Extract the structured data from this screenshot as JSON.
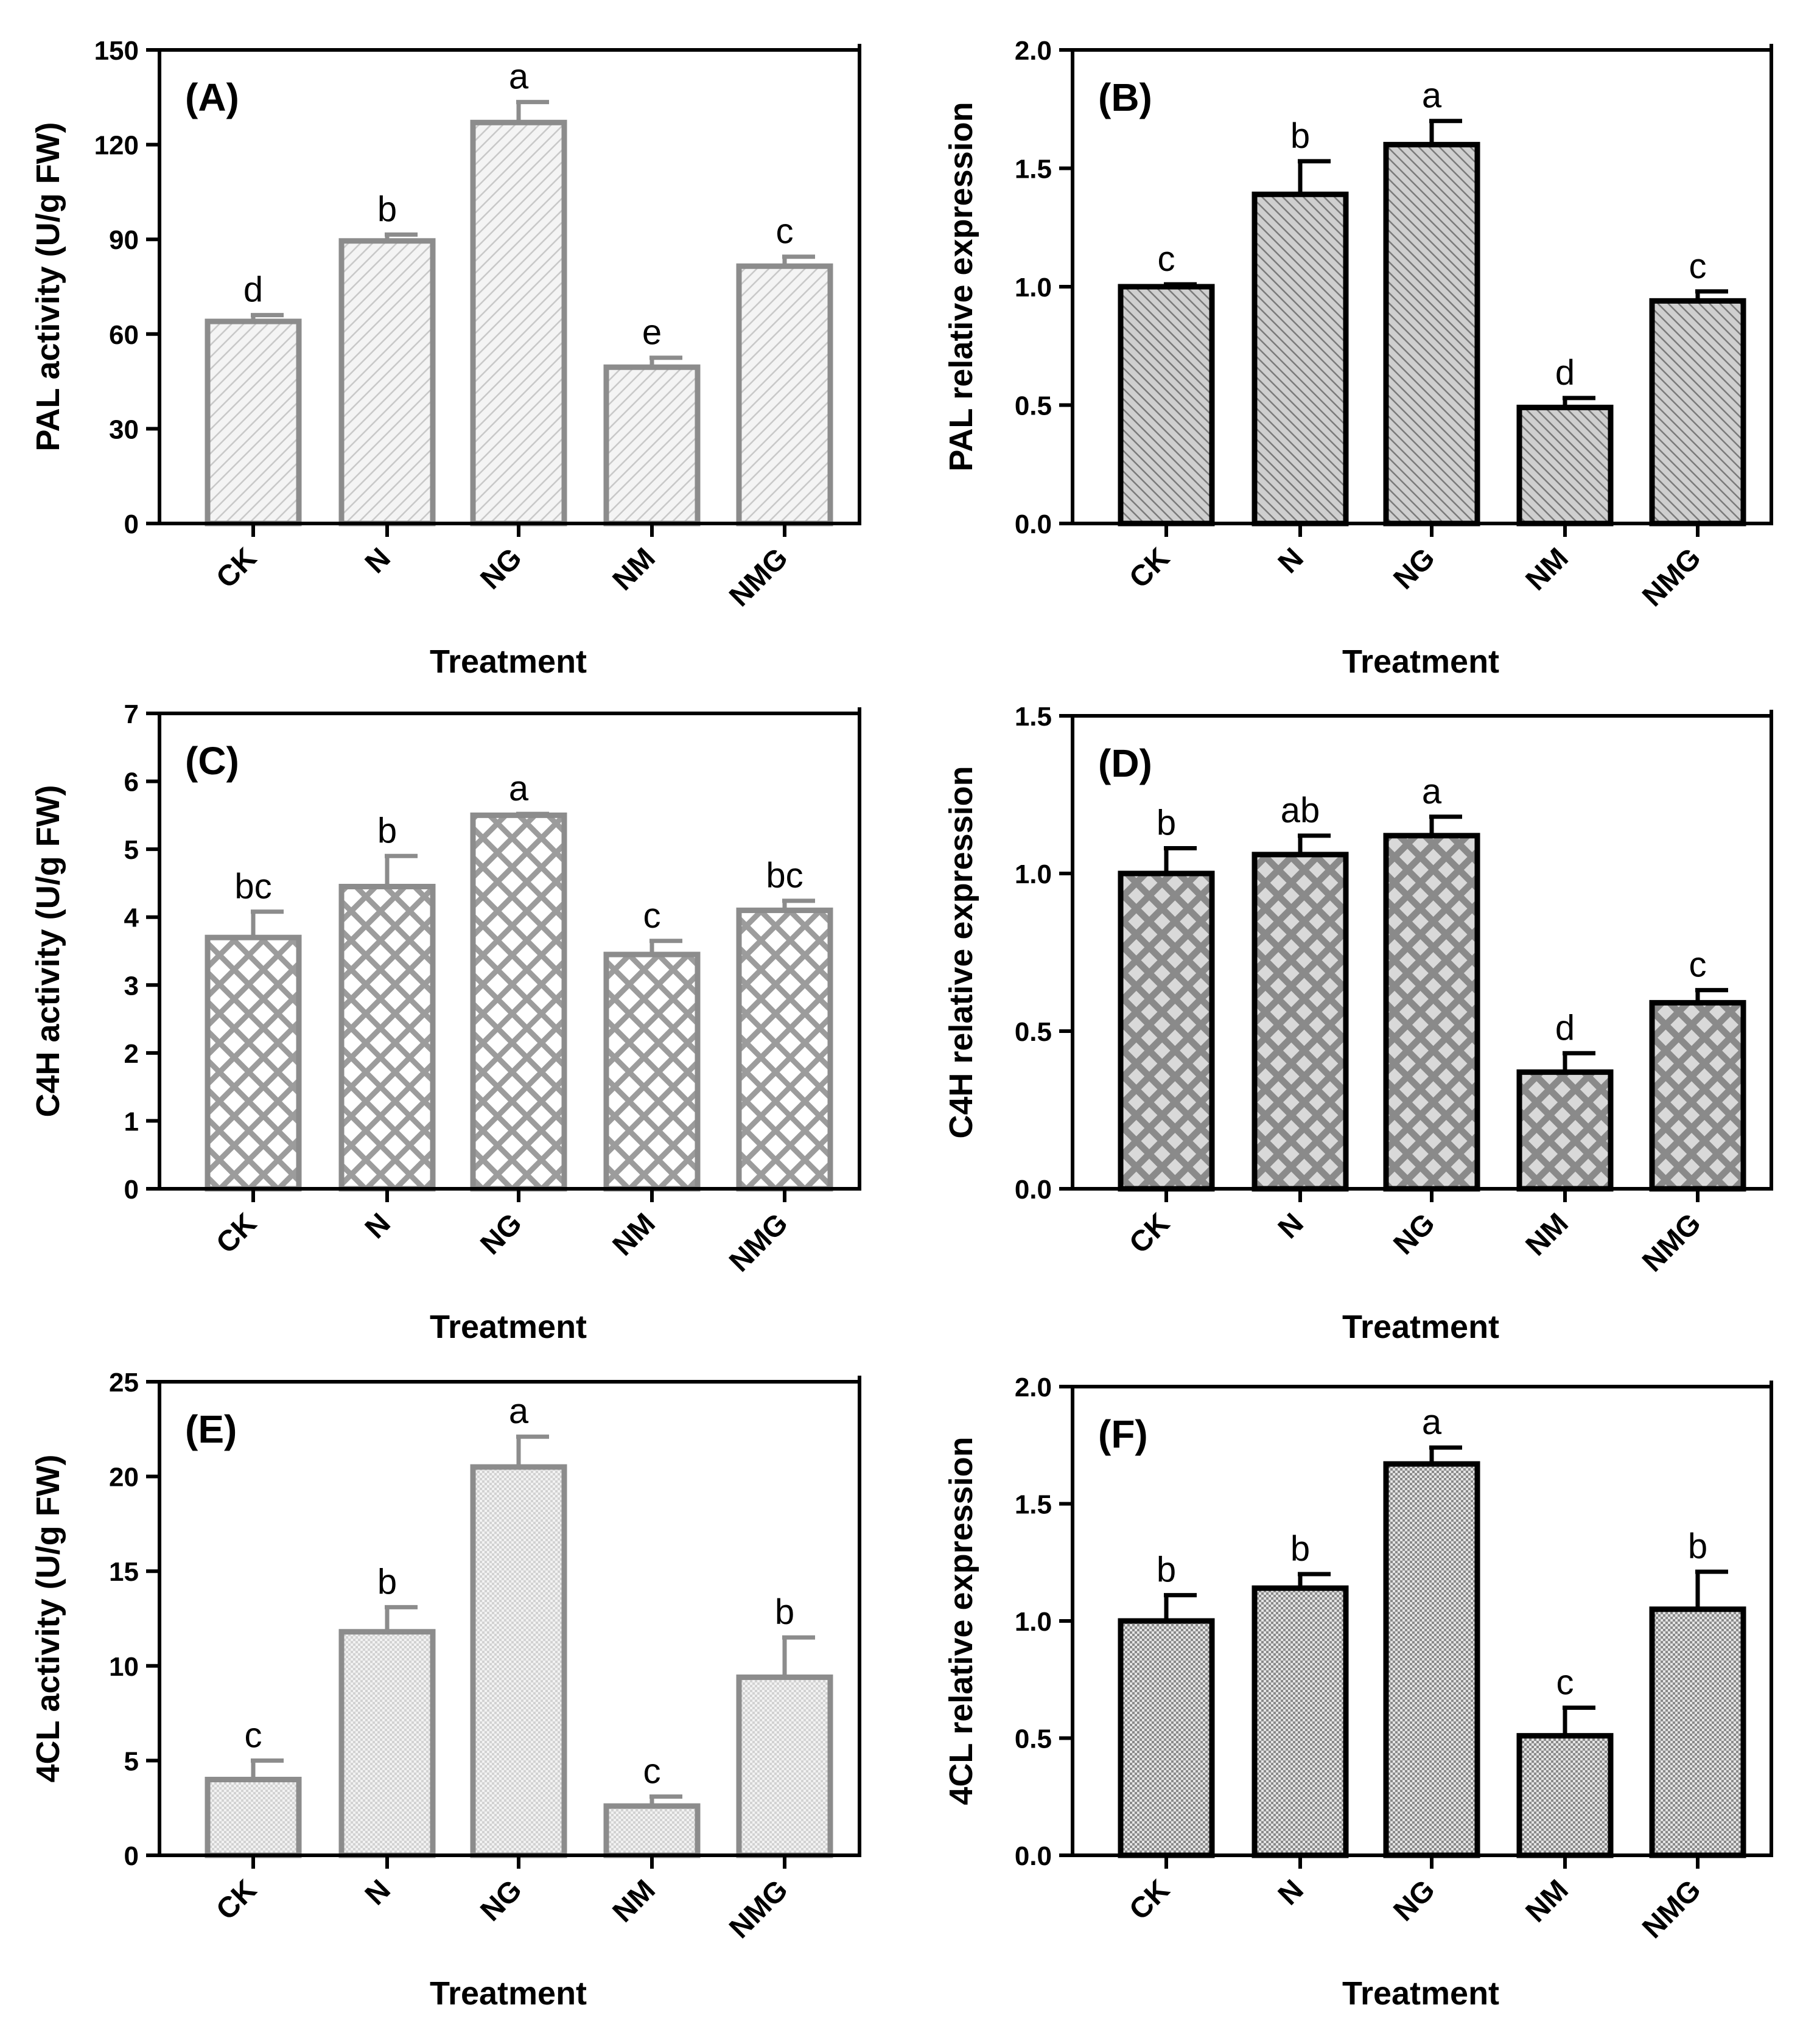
{
  "chart_data": [
    {
      "type": "bar",
      "panel": "(A)",
      "title": "",
      "xlabel": "Treatment",
      "ylabel": "PAL activity (U/g FW)",
      "categories": [
        "CK",
        "N",
        "NG",
        "NM",
        "NMG"
      ],
      "values": [
        64,
        89.5,
        127,
        49.5,
        81.5
      ],
      "errors": [
        2,
        2,
        6.5,
        3,
        3
      ],
      "sig_letters": [
        "d",
        "b",
        "a",
        "e",
        "c"
      ],
      "ylim": [
        0,
        150
      ],
      "yticks": [
        "0",
        "30",
        "60",
        "90",
        "120",
        "150"
      ],
      "bar_edge_color": "#8c8c8c",
      "hatch": "diagonal-light"
    },
    {
      "type": "bar",
      "panel": "(B)",
      "title": "",
      "xlabel": "Treatment",
      "ylabel": "PAL relative expression",
      "categories": [
        "CK",
        "N",
        "NG",
        "NM",
        "NMG"
      ],
      "values": [
        1.0,
        1.39,
        1.6,
        0.49,
        0.94
      ],
      "errors": [
        0.01,
        0.14,
        0.1,
        0.04,
        0.04
      ],
      "sig_letters": [
        "c",
        "b",
        "a",
        "d",
        "c"
      ],
      "ylim": [
        0,
        2.0
      ],
      "yticks": [
        "0.0",
        "0.5",
        "1.0",
        "1.5",
        "2.0"
      ],
      "bar_edge_color": "#000000",
      "hatch": "diagonal-dense"
    },
    {
      "type": "bar",
      "panel": "(C)",
      "title": "",
      "xlabel": "Treatment",
      "ylabel": "C4H activity (U/g FW)",
      "categories": [
        "CK",
        "N",
        "NG",
        "NM",
        "NMG"
      ],
      "values": [
        3.7,
        4.45,
        5.5,
        3.45,
        4.1
      ],
      "errors": [
        0.38,
        0.45,
        0.02,
        0.2,
        0.14
      ],
      "sig_letters": [
        "bc",
        "b",
        "a",
        "c",
        "bc"
      ],
      "ylim": [
        0,
        7
      ],
      "yticks": [
        "0",
        "1",
        "2",
        "3",
        "4",
        "5",
        "6",
        "7"
      ],
      "bar_edge_color": "#8c8c8c",
      "hatch": "crosshatch-grey"
    },
    {
      "type": "bar",
      "panel": "(D)",
      "title": "",
      "xlabel": "Treatment",
      "ylabel": "C4H relative expression",
      "categories": [
        "CK",
        "N",
        "NG",
        "NM",
        "NMG"
      ],
      "values": [
        1.0,
        1.06,
        1.12,
        0.37,
        0.59
      ],
      "errors": [
        0.08,
        0.06,
        0.06,
        0.06,
        0.04
      ],
      "sig_letters": [
        "b",
        "ab",
        "a",
        "d",
        "c"
      ],
      "ylim": [
        0,
        1.5
      ],
      "yticks": [
        "0.0",
        "0.5",
        "1.0",
        "1.5"
      ],
      "bar_edge_color": "#000000",
      "hatch": "crosshatch-dark"
    },
    {
      "type": "bar",
      "panel": "(E)",
      "title": "",
      "xlabel": "Treatment",
      "ylabel": "4CL activity (U/g FW)",
      "categories": [
        "CK",
        "N",
        "NG",
        "NM",
        "NMG"
      ],
      "values": [
        4,
        11.8,
        20.5,
        2.6,
        9.4
      ],
      "errors": [
        1,
        1.3,
        1.6,
        0.5,
        2.1
      ],
      "sig_letters": [
        "c",
        "b",
        "a",
        "c",
        "b"
      ],
      "ylim": [
        0,
        25
      ],
      "yticks": [
        "0",
        "5",
        "10",
        "15",
        "20",
        "25"
      ],
      "bar_edge_color": "#8c8c8c",
      "hatch": "fine-dots-light"
    },
    {
      "type": "bar",
      "panel": "(F)",
      "title": "",
      "xlabel": "Treatment",
      "ylabel": "4CL relative expression",
      "categories": [
        "CK",
        "N",
        "NG",
        "NM",
        "NMG"
      ],
      "values": [
        1.0,
        1.14,
        1.67,
        0.51,
        1.05
      ],
      "errors": [
        0.11,
        0.06,
        0.07,
        0.12,
        0.16
      ],
      "sig_letters": [
        "b",
        "b",
        "a",
        "c",
        "b"
      ],
      "ylim": [
        0,
        2.0
      ],
      "yticks": [
        "0.0",
        "0.5",
        "1.0",
        "1.5",
        "2.0"
      ],
      "bar_edge_color": "#000000",
      "hatch": "fine-dots-dark"
    }
  ]
}
